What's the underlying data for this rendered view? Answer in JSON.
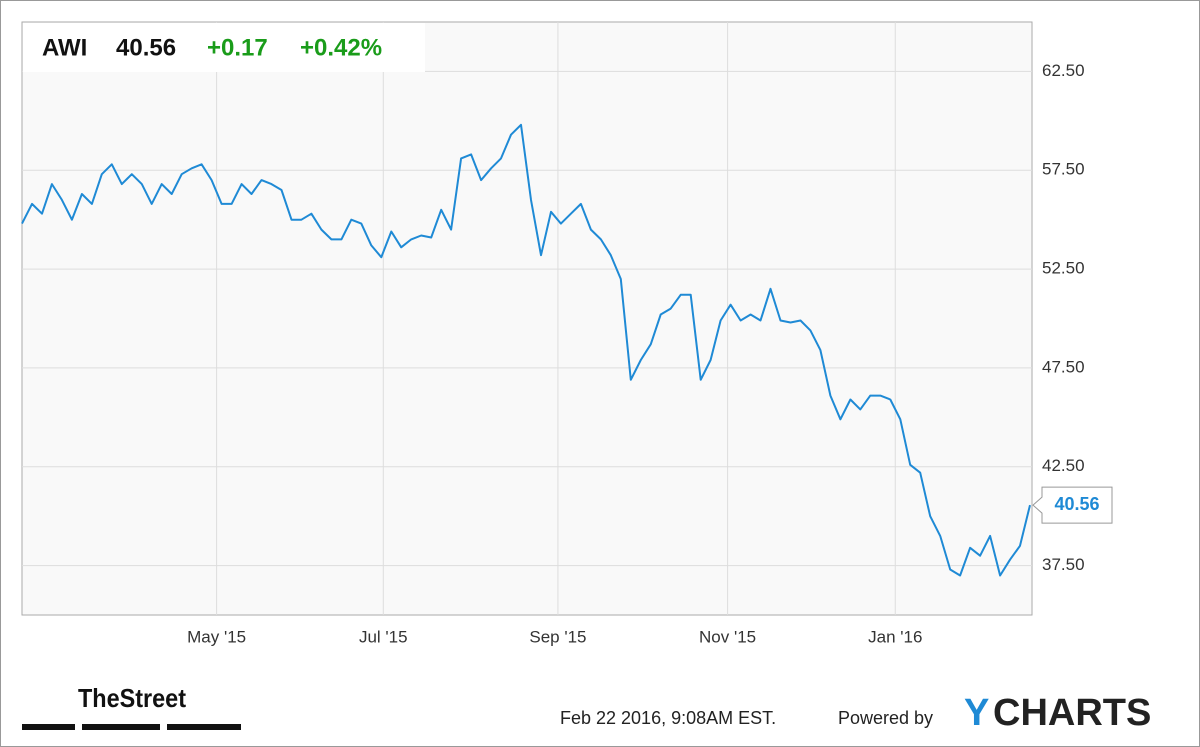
{
  "header": {
    "ticker": "AWI",
    "price": "40.56",
    "change": "+0.17",
    "change_pct": "+0.42%"
  },
  "footer": {
    "source": "TheStreet",
    "timestamp": "Feb 22 2016, 9:08AM EST.",
    "powered_by": "Powered by",
    "brand_y": "Y",
    "brand_rest": "CHARTS"
  },
  "chart_data": {
    "type": "line",
    "color": "#1f8ad5",
    "grid": true,
    "values": [
      54.8,
      55.8,
      55.3,
      56.8,
      56.0,
      55.0,
      56.3,
      55.8,
      57.3,
      57.8,
      56.8,
      57.3,
      56.8,
      55.8,
      56.8,
      56.3,
      57.3,
      57.6,
      57.8,
      57.0,
      55.8,
      55.8,
      56.8,
      56.3,
      57.0,
      56.8,
      56.5,
      55.0,
      55.0,
      55.3,
      54.5,
      54.0,
      54.0,
      55.0,
      54.8,
      53.7,
      53.1,
      54.4,
      53.6,
      54.0,
      54.2,
      54.1,
      55.5,
      54.5,
      58.1,
      58.3,
      57.0,
      57.6,
      58.1,
      59.3,
      59.8,
      56.0,
      53.2,
      55.4,
      54.8,
      55.3,
      55.8,
      54.5,
      54.0,
      53.2,
      52.0,
      46.9,
      47.9,
      48.7,
      50.2,
      50.5,
      51.2,
      51.2,
      46.9,
      47.9,
      49.9,
      50.7,
      49.9,
      50.2,
      49.9,
      51.5,
      49.9,
      49.8,
      49.9,
      49.4,
      48.4,
      46.1,
      44.9,
      45.9,
      45.4,
      46.1,
      46.1,
      45.9,
      44.9,
      42.6,
      42.2,
      40.0,
      39.0,
      37.3,
      37.0,
      38.4,
      38.0,
      39.0,
      37.0,
      37.8,
      38.5,
      40.56
    ],
    "xlim": [
      0,
      101
    ],
    "xticks": [
      {
        "value": 19.5,
        "label": "May '15"
      },
      {
        "value": 36.2,
        "label": "Jul '15"
      },
      {
        "value": 53.7,
        "label": "Sep '15"
      },
      {
        "value": 70.7,
        "label": "Nov '15"
      },
      {
        "value": 87.5,
        "label": "Jan '16"
      }
    ],
    "ylim": [
      35,
      65
    ],
    "yticks": [
      {
        "value": 37.5,
        "label": "37.50"
      },
      {
        "value": 42.5,
        "label": "42.50"
      },
      {
        "value": 47.5,
        "label": "47.50"
      },
      {
        "value": 52.5,
        "label": "52.50"
      },
      {
        "value": 57.5,
        "label": "57.50"
      },
      {
        "value": 62.5,
        "label": "62.50"
      }
    ]
  }
}
